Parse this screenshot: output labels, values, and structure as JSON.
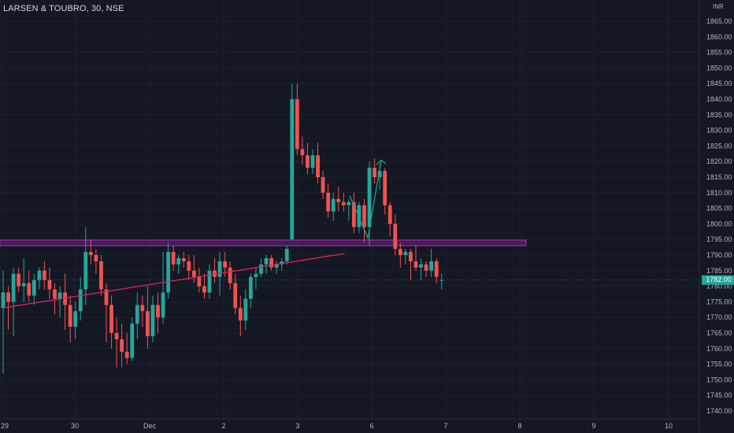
{
  "chart_data": {
    "type": "candlestick",
    "title": "LARSEN & TOUBRO, 30, NSE",
    "currency": "INR",
    "current_price": "1782.00",
    "ylim": [
      1737,
      1873
    ],
    "y_ticks": [
      1740,
      1745,
      1750,
      1755,
      1760,
      1765,
      1770,
      1775,
      1780,
      1785,
      1790,
      1795,
      1800,
      1805,
      1810,
      1815,
      1820,
      1825,
      1830,
      1835,
      1840,
      1845,
      1850,
      1855,
      1860,
      1865
    ],
    "x_tick_labels": [
      "29",
      "30",
      "Dec",
      "2",
      "3",
      "6",
      "7",
      "8",
      "9",
      "10"
    ],
    "candles": [
      [
        1773,
        1785,
        1752,
        1778
      ],
      [
        1778,
        1780,
        1766,
        1775
      ],
      [
        1775,
        1786,
        1764,
        1784
      ],
      [
        1784,
        1786,
        1778,
        1780
      ],
      [
        1780,
        1789,
        1775,
        1781
      ],
      [
        1781,
        1785,
        1775,
        1777
      ],
      [
        1777,
        1784,
        1774,
        1782
      ],
      [
        1782,
        1786,
        1779,
        1785
      ],
      [
        1785,
        1788,
        1779,
        1782
      ],
      [
        1782,
        1786,
        1776,
        1779
      ],
      [
        1779,
        1781,
        1771,
        1776
      ],
      [
        1776,
        1780,
        1770,
        1778
      ],
      [
        1778,
        1784,
        1766,
        1774
      ],
      [
        1774,
        1777,
        1762,
        1767
      ],
      [
        1767,
        1775,
        1763,
        1772
      ],
      [
        1772,
        1783,
        1769,
        1779
      ],
      [
        1779,
        1799,
        1774,
        1791
      ],
      [
        1791,
        1795,
        1787,
        1790
      ],
      [
        1790,
        1792,
        1784,
        1788
      ],
      [
        1788,
        1790,
        1777,
        1779
      ],
      [
        1779,
        1781,
        1762,
        1774
      ],
      [
        1774,
        1777,
        1760,
        1765
      ],
      [
        1765,
        1770,
        1754,
        1763
      ],
      [
        1763,
        1768,
        1754,
        1759
      ],
      [
        1759,
        1765,
        1755,
        1757
      ],
      [
        1757,
        1770,
        1756,
        1768
      ],
      [
        1768,
        1778,
        1763,
        1774
      ],
      [
        1774,
        1777,
        1767,
        1772
      ],
      [
        1772,
        1780,
        1760,
        1764
      ],
      [
        1764,
        1777,
        1762,
        1774
      ],
      [
        1774,
        1778,
        1765,
        1770
      ],
      [
        1770,
        1791,
        1768,
        1778
      ],
      [
        1778,
        1794,
        1776,
        1791
      ],
      [
        1791,
        1793,
        1785,
        1787
      ],
      [
        1787,
        1790,
        1784,
        1789
      ],
      [
        1789,
        1791,
        1786,
        1788
      ],
      [
        1788,
        1790,
        1782,
        1785
      ],
      [
        1785,
        1790,
        1781,
        1783
      ],
      [
        1783,
        1786,
        1778,
        1780
      ],
      [
        1780,
        1784,
        1776,
        1778
      ],
      [
        1778,
        1787,
        1776,
        1785
      ],
      [
        1785,
        1789,
        1781,
        1783
      ],
      [
        1783,
        1791,
        1777,
        1788
      ],
      [
        1788,
        1791,
        1783,
        1786
      ],
      [
        1786,
        1788,
        1779,
        1781
      ],
      [
        1781,
        1784,
        1771,
        1773
      ],
      [
        1773,
        1777,
        1764,
        1769
      ],
      [
        1769,
        1779,
        1766,
        1776
      ],
      [
        1776,
        1784,
        1773,
        1783
      ],
      [
        1783,
        1786,
        1779,
        1784
      ],
      [
        1784,
        1789,
        1783,
        1787
      ],
      [
        1787,
        1790,
        1784,
        1789
      ],
      [
        1789,
        1790,
        1785,
        1786
      ],
      [
        1786,
        1788,
        1784,
        1787
      ],
      [
        1787,
        1789,
        1785,
        1788
      ],
      [
        1788,
        1793,
        1787,
        1792
      ],
      [
        1795,
        1845,
        1795,
        1840
      ],
      [
        1840,
        1845,
        1822,
        1824
      ],
      [
        1824,
        1828,
        1819,
        1822
      ],
      [
        1822,
        1826,
        1816,
        1818
      ],
      [
        1818,
        1824,
        1816,
        1822
      ],
      [
        1822,
        1826,
        1813,
        1815
      ],
      [
        1815,
        1817,
        1808,
        1810
      ],
      [
        1810,
        1813,
        1802,
        1804
      ],
      [
        1804,
        1810,
        1801,
        1808
      ],
      [
        1808,
        1812,
        1804,
        1807
      ],
      [
        1807,
        1810,
        1804,
        1806
      ],
      [
        1806,
        1808,
        1801,
        1807
      ],
      [
        1807,
        1810,
        1797,
        1799
      ],
      [
        1799,
        1807,
        1797,
        1806
      ],
      [
        1806,
        1808,
        1794,
        1799
      ],
      [
        1799,
        1820,
        1793,
        1818
      ],
      [
        1818,
        1821,
        1813,
        1815
      ],
      [
        1815,
        1819,
        1811,
        1817
      ],
      [
        1817,
        1818,
        1803,
        1806
      ],
      [
        1806,
        1807,
        1796,
        1800
      ],
      [
        1800,
        1803,
        1790,
        1792
      ],
      [
        1792,
        1794,
        1786,
        1790
      ],
      [
        1790,
        1792,
        1787,
        1791
      ],
      [
        1791,
        1792,
        1782,
        1788
      ],
      [
        1788,
        1793,
        1785,
        1786
      ],
      [
        1786,
        1789,
        1782,
        1787
      ],
      [
        1787,
        1788,
        1783,
        1785
      ],
      [
        1785,
        1792,
        1783,
        1788
      ],
      [
        1788,
        1789,
        1781,
        1783
      ],
      [
        1782,
        1784,
        1779,
        1782
      ]
    ],
    "support_zone": [
      1793,
      1794.8
    ],
    "trendline": [
      [
        -0.2,
        1773
      ],
      [
        66.2,
        1790.5
      ]
    ],
    "projection_path": [
      [
        67.2,
        1809
      ],
      [
        70.7,
        1795.5
      ],
      [
        73.3,
        1820.5
      ]
    ],
    "colors": {
      "up": "#26a69a",
      "down": "#ef5350",
      "zone": "#9c27b0",
      "trend": "#e91e63",
      "projection": "#1f9e89",
      "grid": "#1e2230"
    }
  }
}
